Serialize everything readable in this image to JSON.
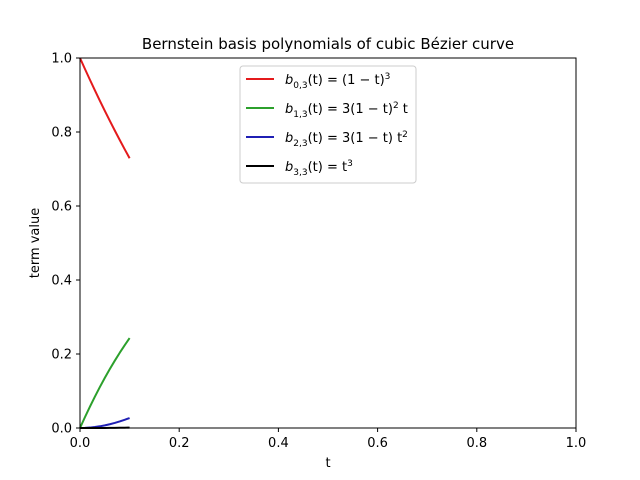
{
  "chart_data": {
    "type": "line",
    "title": "Bernstein basis polynomials of cubic Bézier curve",
    "xlabel": "t",
    "ylabel": "term value",
    "xlim": [
      0.0,
      1.0
    ],
    "ylim": [
      0.0,
      1.0
    ],
    "x_ticks": [
      "0.0",
      "0.2",
      "0.4",
      "0.6",
      "0.8",
      "1.0"
    ],
    "y_ticks": [
      "0.0",
      "0.2",
      "0.4",
      "0.6",
      "0.8",
      "1.0"
    ],
    "grid": false,
    "legend_position": "upper-center",
    "x": [
      0.0,
      0.01,
      0.02,
      0.03,
      0.04,
      0.05,
      0.06,
      0.07,
      0.08,
      0.09,
      0.1
    ],
    "series": [
      {
        "name": "b_{0,3}(t) = (1 − t)^3",
        "color": "#e41a1c",
        "values": [
          1.0,
          0.9703,
          0.9412,
          0.9127,
          0.8847,
          0.8574,
          0.8306,
          0.8044,
          0.7787,
          0.7536,
          0.729
        ]
      },
      {
        "name": "b_{1,3}(t) = 3(1 − t)^2 t",
        "color": "#2ca02c",
        "values": [
          0.0,
          0.0294,
          0.0576,
          0.0847,
          0.1106,
          0.1354,
          0.159,
          0.1816,
          0.2031,
          0.2236,
          0.243
        ]
      },
      {
        "name": "b_{2,3}(t) = 3(1 − t) t^2",
        "color": "#1f1fb4",
        "values": [
          0.0,
          0.0003,
          0.0012,
          0.0026,
          0.0046,
          0.0071,
          0.0102,
          0.0137,
          0.0177,
          0.0221,
          0.027
        ]
      },
      {
        "name": "b_{3,3}(t) = t^3",
        "color": "#000000",
        "values": [
          0.0,
          0.0,
          0.0,
          0.0,
          0.0001,
          0.0001,
          0.0002,
          0.0003,
          0.0005,
          0.0007,
          0.001
        ]
      }
    ]
  }
}
